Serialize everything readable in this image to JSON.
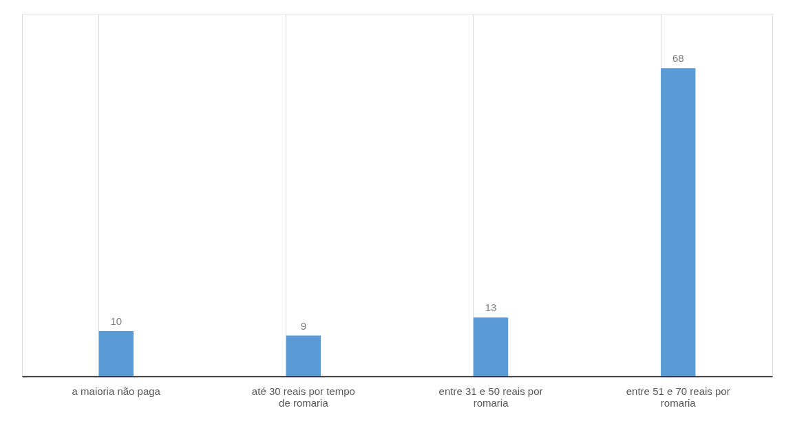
{
  "chart_data": {
    "type": "bar",
    "categories": [
      "a maioria não paga",
      "até 30 reais por tempo de romaria",
      "entre 31 e 50 reais por romaria",
      "entre 51 e 70 reais por romaria"
    ],
    "values": [
      10,
      9,
      13,
      68
    ],
    "color": "#5b9bd5",
    "data_labels": true,
    "ylim": [
      0,
      80
    ],
    "tick_labels": "x",
    "grid": "x"
  }
}
